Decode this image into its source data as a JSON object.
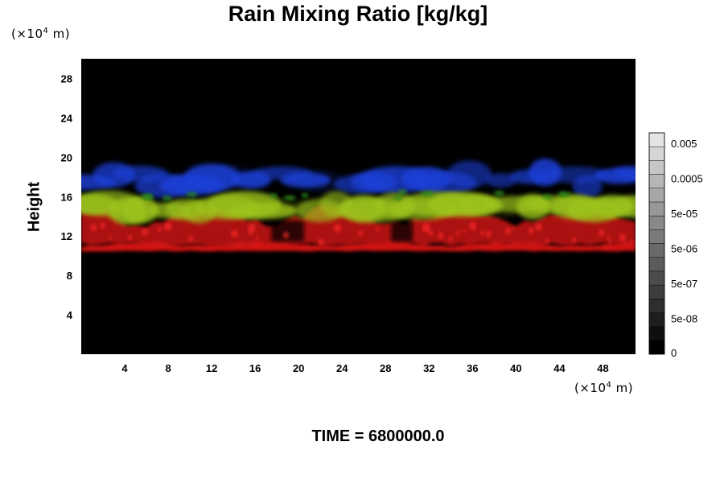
{
  "chart_data": {
    "type": "heatmap",
    "title": "Rain Mixing Ratio [kg/kg]",
    "ylabel": "Height",
    "x_unit_prefix": "(×10",
    "x_unit_exp": "4",
    "x_unit_suffix": " m)",
    "y_unit_prefix": "(×10",
    "y_unit_exp": "4",
    "y_unit_suffix": " m)",
    "xlim": [
      0,
      51
    ],
    "ylim": [
      0,
      30
    ],
    "xticks": [
      4,
      8,
      12,
      16,
      20,
      24,
      28,
      32,
      36,
      40,
      44,
      48
    ],
    "yticks": [
      4,
      8,
      12,
      16,
      20,
      24,
      28
    ],
    "background_color": "#000000",
    "layer_colors": {
      "red": "#dd1818",
      "yellow_green": "#9cc41e",
      "green": "#2f8f1e",
      "blue": "#1f3fd8"
    },
    "layers": [
      {
        "color": "red",
        "x_range": [
          0,
          51
        ],
        "height_range": [
          10.5,
          11.2
        ]
      },
      {
        "color": "red",
        "x_range": [
          0,
          51
        ],
        "height_range": [
          11.2,
          14.0
        ]
      },
      {
        "color": "yellow_green",
        "x_range": [
          0,
          51
        ],
        "height_range": [
          13.8,
          16.0
        ]
      },
      {
        "color": "blue",
        "x_range": [
          0,
          51
        ],
        "height_range": [
          16.5,
          19.5
        ]
      }
    ],
    "colorbar": {
      "tick_labels": [
        "0.005",
        "0.0005",
        "5e-05",
        "5e-06",
        "5e-07",
        "5e-08",
        "0"
      ],
      "levels": 16
    },
    "time_label": "TIME = 6800000.0"
  }
}
